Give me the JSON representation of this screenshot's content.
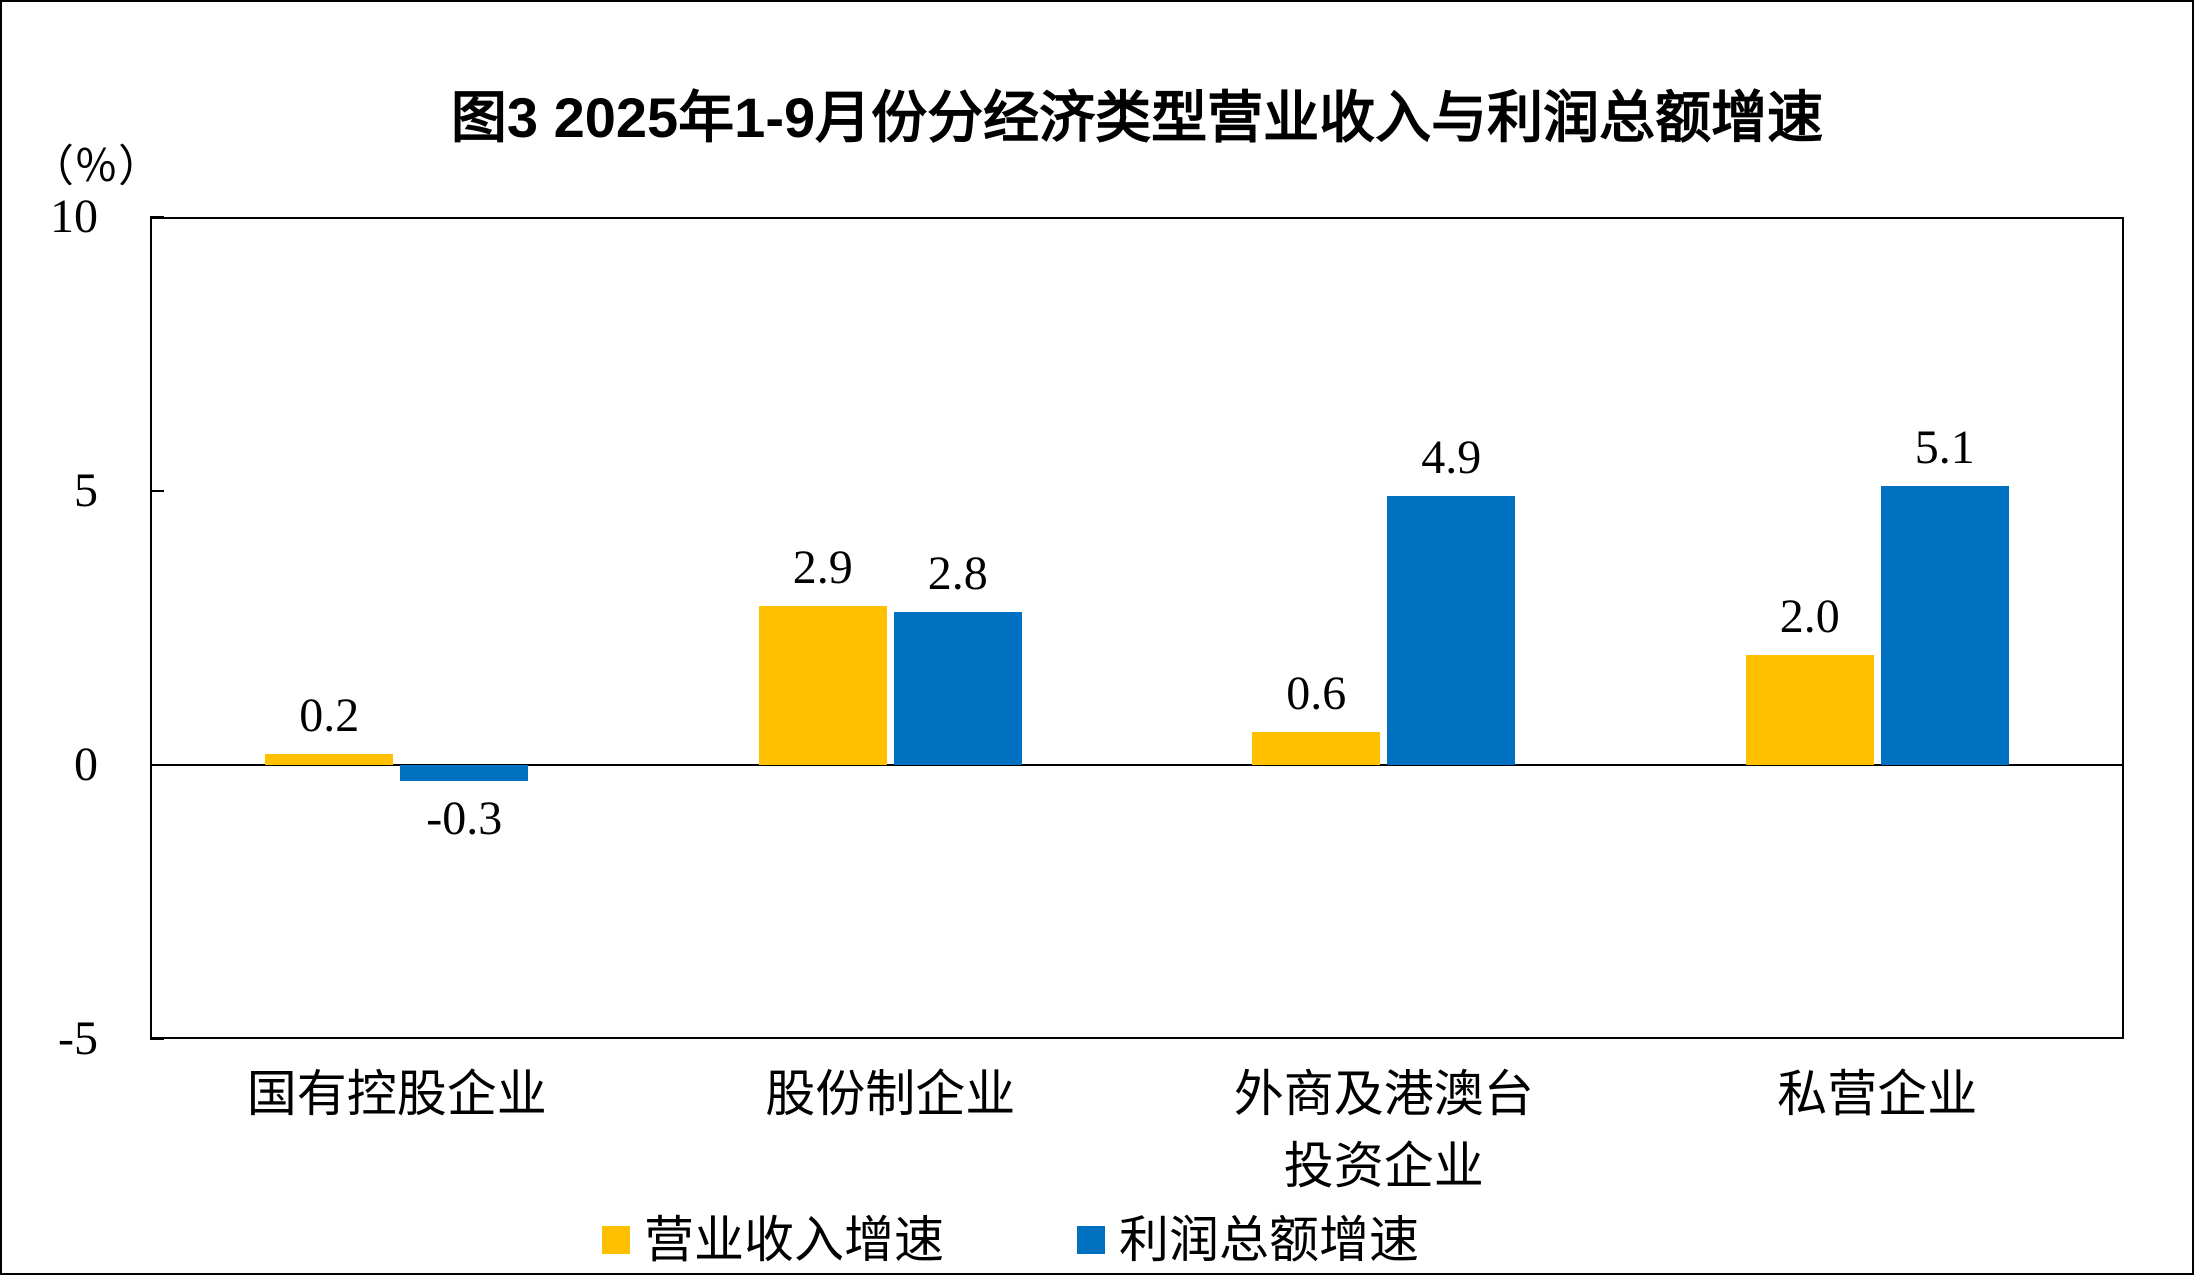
{
  "figure": {
    "title": "图3 2025年1-9月份分经济类型营业收入与利润总额增速",
    "y_unit": "（％）"
  },
  "chart_data": {
    "type": "bar",
    "title": "图3 2025年1-9月份分经济类型营业收入与利润总额增速",
    "y_unit_label": "（％）",
    "categories": [
      "国有控股企业",
      "股份制企业",
      "外商及港澳台\n投资企业",
      "私营企业"
    ],
    "series": [
      {
        "name": "营业收入增速",
        "color": "#FFC000",
        "values": [
          0.2,
          2.9,
          0.6,
          2.0
        ]
      },
      {
        "name": "利润总额增速",
        "color": "#0070C0",
        "values": [
          -0.3,
          2.8,
          4.9,
          5.1
        ]
      }
    ],
    "ylim": [
      -5,
      10
    ],
    "yticks": [
      10,
      5,
      0,
      -5
    ],
    "grid": false,
    "data_labels": true,
    "legend_position": "bottom",
    "bar_color_names": [
      "gold",
      "blue"
    ]
  }
}
